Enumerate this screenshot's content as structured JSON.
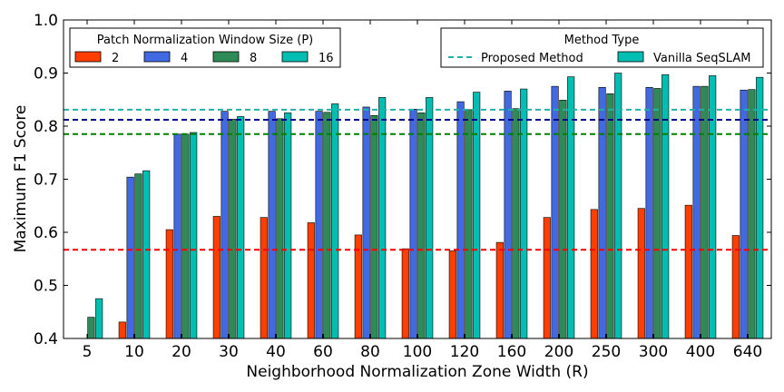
{
  "chart_data": {
    "type": "bar",
    "xlabel": "Neighborhood Normalization Zone Width (R)",
    "ylabel": "Maximum F1 Score",
    "ylim": [
      0.4,
      1.0
    ],
    "yticks": [
      "0.4",
      "0.5",
      "0.6",
      "0.7",
      "0.8",
      "0.9",
      "1.0"
    ],
    "grid": false,
    "categories": [
      "5",
      "10",
      "20",
      "30",
      "40",
      "60",
      "80",
      "100",
      "120",
      "160",
      "200",
      "250",
      "300",
      "400",
      "640"
    ],
    "series": [
      {
        "name": "2",
        "color": "#ff3e00",
        "values": [
          null,
          0.431,
          0.605,
          0.63,
          0.628,
          0.618,
          0.595,
          0.569,
          0.565,
          0.581,
          0.628,
          0.643,
          0.645,
          0.651,
          0.594
        ]
      },
      {
        "name": "4",
        "color": "#4169e1",
        "values": [
          null,
          0.704,
          0.785,
          0.828,
          0.828,
          0.828,
          0.836,
          0.832,
          0.846,
          0.866,
          0.875,
          0.873,
          0.873,
          0.875,
          0.868
        ]
      },
      {
        "name": "8",
        "color": "#2e8b57",
        "values": [
          0.44,
          0.71,
          0.785,
          0.813,
          0.814,
          0.826,
          0.82,
          0.825,
          0.831,
          0.833,
          0.849,
          0.861,
          0.871,
          0.875,
          0.869
        ]
      },
      {
        "name": "16",
        "color": "#00bfb2",
        "values": [
          0.475,
          0.716,
          0.788,
          0.818,
          0.825,
          0.842,
          0.854,
          0.854,
          0.864,
          0.87,
          0.893,
          0.9,
          0.897,
          0.895,
          0.892
        ]
      }
    ],
    "baselines": [
      {
        "series": "2",
        "color": "#ff0000",
        "value": 0.567
      },
      {
        "series": "4",
        "color": "#00008b",
        "value": 0.812
      },
      {
        "series": "8",
        "color": "#008000",
        "value": 0.785
      },
      {
        "series": "16",
        "color": "#20b2aa",
        "value": 0.831
      }
    ],
    "legend_window": {
      "title": "Patch Normalization Window Size (P)",
      "placement": "top-left"
    },
    "legend_method": {
      "title": "Method Type",
      "placement": "top-right",
      "entries": [
        {
          "label": "Proposed Method",
          "style": "dashed",
          "color": "#20b2aa"
        },
        {
          "label": "Vanilla SeqSLAM",
          "style": "patch",
          "color": "#00bfb2"
        }
      ]
    }
  }
}
